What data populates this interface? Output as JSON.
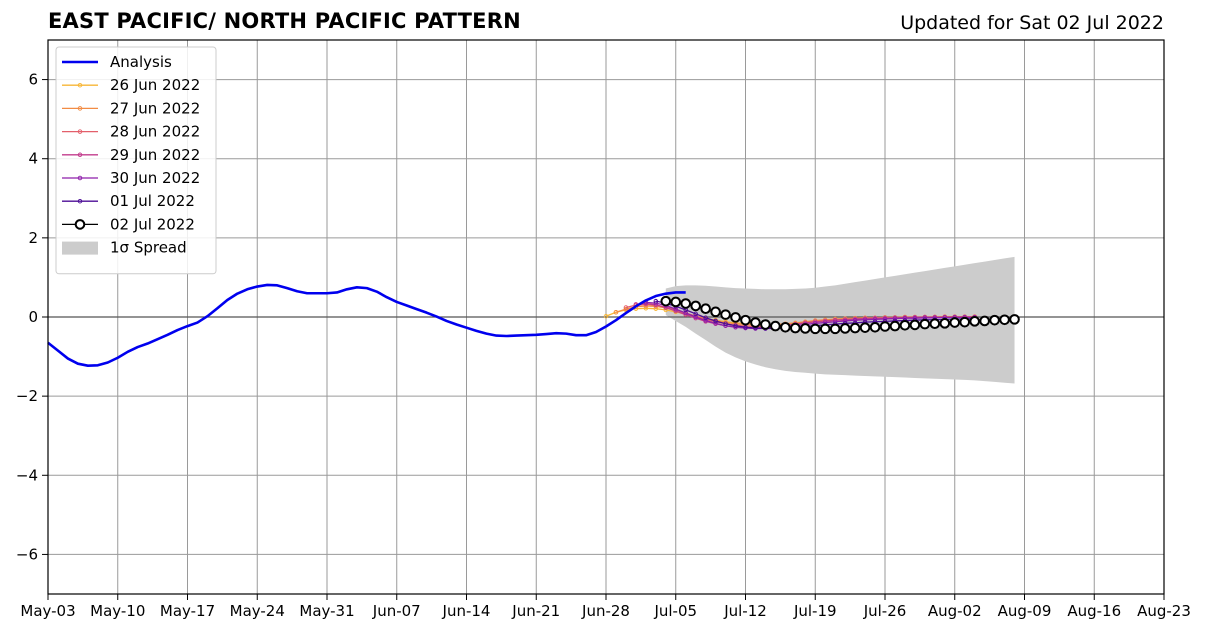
{
  "header": {
    "title": "EAST PACIFIC/ NORTH PACIFIC PATTERN",
    "subtitle": "Updated for Sat 02 Jul 2022"
  },
  "chart_data": {
    "type": "line",
    "title": "EAST PACIFIC/ NORTH PACIFIC PATTERN",
    "subtitle": "Updated for Sat 02 Jul 2022",
    "xlabel": "",
    "ylabel": "",
    "xlim": [
      "2022-05-03",
      "2022-08-23"
    ],
    "ylim": [
      -7,
      7
    ],
    "x_ticks": [
      "May-03",
      "May-10",
      "May-17",
      "May-24",
      "May-31",
      "Jun-07",
      "Jun-14",
      "Jun-21",
      "Jun-28",
      "Jul-05",
      "Jul-12",
      "Jul-19",
      "Jul-26",
      "Aug-02",
      "Aug-09",
      "Aug-16",
      "Aug-23"
    ],
    "y_ticks": [
      -6,
      -4,
      -2,
      0,
      2,
      4,
      6
    ],
    "y_tick_labels": [
      "−6",
      "−4",
      "−2",
      "0",
      "2",
      "4",
      "6"
    ],
    "grid": true,
    "legend_position": "top-left",
    "colors": {
      "analysis": "#0000ee",
      "spread": "#cccccc",
      "grid": "#9a9a9a",
      "zero_line": "#555555"
    },
    "analysis": {
      "name": "Analysis",
      "start": "2022-05-03",
      "values": [
        -0.65,
        -0.85,
        -1.05,
        -1.18,
        -1.23,
        -1.22,
        -1.15,
        -1.03,
        -0.88,
        -0.76,
        -0.67,
        -0.56,
        -0.45,
        -0.33,
        -0.23,
        -0.14,
        0.02,
        0.22,
        0.43,
        0.59,
        0.7,
        0.77,
        0.81,
        0.8,
        0.73,
        0.65,
        0.6,
        0.6,
        0.6,
        0.62,
        0.7,
        0.75,
        0.73,
        0.64,
        0.5,
        0.38,
        0.29,
        0.2,
        0.11,
        0.01,
        -0.1,
        -0.19,
        -0.27,
        -0.35,
        -0.42,
        -0.47,
        -0.48,
        -0.47,
        -0.46,
        -0.45,
        -0.43,
        -0.41,
        -0.42,
        -0.46,
        -0.46,
        -0.38,
        -0.24,
        -0.08,
        0.1,
        0.27,
        0.42,
        0.53,
        0.59,
        0.62,
        0.62
      ]
    },
    "forecasts": [
      {
        "name": "26 Jun 2022",
        "color": "#f7b636",
        "start": "2022-06-28",
        "values": [
          0.02,
          0.12,
          0.18,
          0.21,
          0.22,
          0.21,
          0.18,
          0.13,
          0.07,
          0.02,
          -0.04,
          -0.08,
          -0.12,
          -0.15,
          -0.17,
          -0.18,
          -0.19,
          -0.19,
          -0.18,
          -0.16,
          -0.14,
          -0.12,
          -0.1,
          -0.08,
          -0.06,
          -0.05,
          -0.04,
          -0.03,
          -0.03,
          -0.02,
          -0.01,
          -0.01,
          -0.01,
          0.0,
          0.0,
          0.0,
          0.0,
          0.01
        ]
      },
      {
        "name": "27 Jun 2022",
        "color": "#f28c44",
        "start": "2022-06-29",
        "values": [
          0.12,
          0.2,
          0.26,
          0.28,
          0.27,
          0.23,
          0.17,
          0.1,
          0.02,
          -0.04,
          -0.09,
          -0.14,
          -0.17,
          -0.19,
          -0.2,
          -0.2,
          -0.19,
          -0.17,
          -0.15,
          -0.12,
          -0.09,
          -0.07,
          -0.05,
          -0.04,
          -0.03,
          -0.02,
          -0.02,
          -0.01,
          -0.01,
          0.0,
          0.0,
          0.0,
          0.0,
          0.01,
          0.01,
          0.01,
          0.01
        ]
      },
      {
        "name": "28 Jun 2022",
        "color": "#e35f6a",
        "start": "2022-06-30",
        "values": [
          0.24,
          0.3,
          0.32,
          0.3,
          0.25,
          0.18,
          0.1,
          0.02,
          -0.06,
          -0.12,
          -0.17,
          -0.21,
          -0.23,
          -0.24,
          -0.24,
          -0.23,
          -0.21,
          -0.18,
          -0.15,
          -0.12,
          -0.1,
          -0.08,
          -0.06,
          -0.05,
          -0.04,
          -0.03,
          -0.02,
          -0.02,
          -0.01,
          -0.01,
          0.0,
          0.0,
          0.0,
          0.0,
          0.0,
          0.0
        ]
      },
      {
        "name": "29 Jun 2022",
        "color": "#c23b8c",
        "start": "2022-07-01",
        "values": [
          0.32,
          0.34,
          0.31,
          0.24,
          0.15,
          0.06,
          -0.03,
          -0.11,
          -0.17,
          -0.22,
          -0.25,
          -0.27,
          -0.27,
          -0.26,
          -0.24,
          -0.21,
          -0.18,
          -0.15,
          -0.12,
          -0.1,
          -0.08,
          -0.07,
          -0.05,
          -0.04,
          -0.03,
          -0.03,
          -0.02,
          -0.02,
          -0.01,
          -0.01,
          -0.01,
          -0.01,
          0.0,
          0.0,
          0.0
        ]
      },
      {
        "name": "30 Jun 2022",
        "color": "#8e1eaa",
        "start": "2022-07-02",
        "values": [
          0.37,
          0.35,
          0.29,
          0.2,
          0.1,
          0.0,
          -0.09,
          -0.16,
          -0.22,
          -0.26,
          -0.28,
          -0.29,
          -0.29,
          -0.27,
          -0.25,
          -0.22,
          -0.19,
          -0.16,
          -0.14,
          -0.12,
          -0.1,
          -0.08,
          -0.07,
          -0.06,
          -0.05,
          -0.04,
          -0.03,
          -0.03,
          -0.02,
          -0.02,
          -0.01,
          -0.01,
          -0.01,
          -0.01
        ]
      },
      {
        "name": "01 Jul 2022",
        "color": "#4b0c96",
        "start": "2022-07-03",
        "values": [
          0.4,
          0.35,
          0.27,
          0.18,
          0.08,
          -0.02,
          -0.1,
          -0.17,
          -0.22,
          -0.26,
          -0.28,
          -0.29,
          -0.29,
          -0.28,
          -0.26,
          -0.24,
          -0.22,
          -0.2,
          -0.18,
          -0.16,
          -0.15,
          -0.13,
          -0.12,
          -0.11,
          -0.1,
          -0.09,
          -0.08,
          -0.07,
          -0.07,
          -0.06,
          -0.05,
          -0.05,
          -0.04
        ]
      },
      {
        "name": "02 Jul 2022",
        "color": "#000000",
        "start": "2022-07-04",
        "values": [
          0.4,
          0.38,
          0.34,
          0.28,
          0.21,
          0.13,
          0.06,
          -0.01,
          -0.08,
          -0.14,
          -0.19,
          -0.23,
          -0.26,
          -0.28,
          -0.29,
          -0.3,
          -0.3,
          -0.3,
          -0.29,
          -0.28,
          -0.27,
          -0.26,
          -0.24,
          -0.23,
          -0.21,
          -0.2,
          -0.18,
          -0.17,
          -0.16,
          -0.14,
          -0.13,
          -0.11,
          -0.1,
          -0.08,
          -0.07,
          -0.06
        ]
      }
    ],
    "spread": {
      "name": "1σ Spread",
      "start": "2022-07-04",
      "upper": [
        0.72,
        0.78,
        0.8,
        0.8,
        0.79,
        0.77,
        0.75,
        0.73,
        0.72,
        0.71,
        0.7,
        0.7,
        0.7,
        0.71,
        0.72,
        0.74,
        0.77,
        0.8,
        0.84,
        0.88,
        0.92,
        0.96,
        1.0,
        1.04,
        1.08,
        1.12,
        1.16,
        1.2,
        1.24,
        1.28,
        1.32,
        1.36,
        1.4,
        1.44,
        1.48,
        1.52
      ],
      "lower": [
        0.05,
        -0.1,
        -0.25,
        -0.42,
        -0.58,
        -0.75,
        -0.9,
        -1.02,
        -1.12,
        -1.2,
        -1.27,
        -1.32,
        -1.36,
        -1.39,
        -1.41,
        -1.43,
        -1.45,
        -1.46,
        -1.47,
        -1.48,
        -1.49,
        -1.5,
        -1.51,
        -1.52,
        -1.53,
        -1.54,
        -1.55,
        -1.56,
        -1.57,
        -1.58,
        -1.59,
        -1.6,
        -1.62,
        -1.64,
        -1.66,
        -1.68
      ]
    }
  }
}
